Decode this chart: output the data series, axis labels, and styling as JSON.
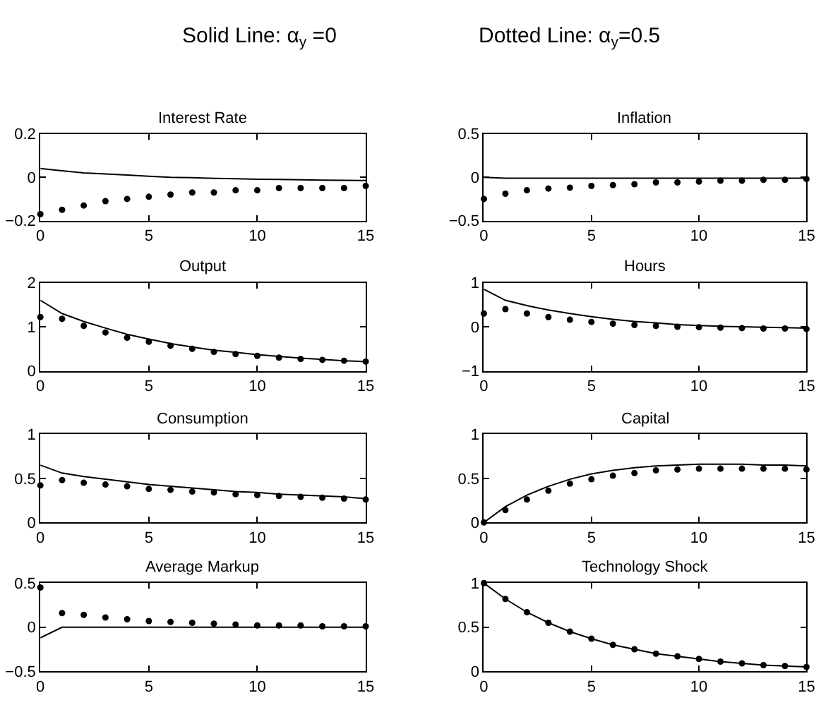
{
  "chart_data": [
    {
      "type": "line",
      "title": "Interest Rate",
      "annotations": [
        "Solid Line: α$_{y}$ =0",
        "Dotted Line: α$_{y}$=0.5"
      ],
      "x": [
        0,
        1,
        2,
        3,
        4,
        5,
        6,
        7,
        8,
        9,
        10,
        11,
        12,
        13,
        14,
        15
      ],
      "xlim": [
        0,
        15
      ],
      "xticks": [
        0,
        5,
        10,
        15
      ],
      "ylim": [
        -0.2,
        0.2
      ],
      "yticks": [
        {
          "value": -0.2,
          "label": "−0.2"
        },
        0,
        0.2
      ],
      "series": [
        {
          "color": "#000000",
          "line_style": "solid",
          "values": [
            0.04,
            0.03,
            0.02,
            0.015,
            0.01,
            0.005,
            0.0,
            -0.002,
            -0.005,
            -0.007,
            -0.009,
            -0.01,
            -0.012,
            -0.013,
            -0.014,
            -0.015
          ]
        },
        {
          "type": "scatter",
          "color": "#000000",
          "marker": "circle",
          "values": [
            -0.17,
            -0.15,
            -0.13,
            -0.11,
            -0.1,
            -0.09,
            -0.08,
            -0.07,
            -0.07,
            -0.06,
            -0.06,
            -0.05,
            -0.05,
            -0.05,
            -0.05,
            -0.04
          ]
        }
      ]
    },
    {
      "type": "line",
      "title": "Inflation",
      "x": [
        0,
        1,
        2,
        3,
        4,
        5,
        6,
        7,
        8,
        9,
        10,
        11,
        12,
        13,
        14,
        15
      ],
      "xlim": [
        0,
        15
      ],
      "xticks": [
        0,
        5,
        10,
        15
      ],
      "ylim": [
        -0.5,
        0.5
      ],
      "yticks": [
        {
          "value": -0.5,
          "label": "−0.5"
        },
        0,
        0.5
      ],
      "series": [
        {
          "color": "#000000",
          "line_style": "solid",
          "values": [
            0.0,
            -0.01,
            -0.01,
            -0.01,
            -0.01,
            -0.01,
            -0.01,
            -0.01,
            -0.01,
            -0.01,
            -0.01,
            -0.01,
            -0.01,
            -0.01,
            -0.01,
            -0.01
          ]
        },
        {
          "type": "scatter",
          "color": "#000000",
          "marker": "circle",
          "values": [
            -0.25,
            -0.19,
            -0.15,
            -0.13,
            -0.12,
            -0.1,
            -0.09,
            -0.08,
            -0.06,
            -0.06,
            -0.05,
            -0.04,
            -0.04,
            -0.03,
            -0.03,
            -0.02
          ]
        }
      ]
    },
    {
      "type": "line",
      "title": "Output",
      "x": [
        0,
        1,
        2,
        3,
        4,
        5,
        6,
        7,
        8,
        9,
        10,
        11,
        12,
        13,
        14,
        15
      ],
      "xlim": [
        0,
        15
      ],
      "xticks": [
        0,
        5,
        10,
        15
      ],
      "ylim": [
        0,
        2
      ],
      "yticks": [
        0,
        1,
        2
      ],
      "series": [
        {
          "color": "#000000",
          "line_style": "solid",
          "values": [
            1.6,
            1.3,
            1.12,
            0.97,
            0.83,
            0.72,
            0.62,
            0.54,
            0.47,
            0.42,
            0.37,
            0.33,
            0.29,
            0.26,
            0.23,
            0.21
          ]
        },
        {
          "type": "scatter",
          "color": "#000000",
          "marker": "circle",
          "values": [
            1.22,
            1.18,
            1.02,
            0.87,
            0.75,
            0.66,
            0.57,
            0.5,
            0.43,
            0.38,
            0.34,
            0.3,
            0.27,
            0.25,
            0.23,
            0.21
          ]
        }
      ]
    },
    {
      "type": "line",
      "title": "Hours",
      "x": [
        0,
        1,
        2,
        3,
        4,
        5,
        6,
        7,
        8,
        9,
        10,
        11,
        12,
        13,
        14,
        15
      ],
      "xlim": [
        0,
        15
      ],
      "xticks": [
        0,
        5,
        10,
        15
      ],
      "ylim": [
        -1,
        1
      ],
      "yticks": [
        {
          "value": -1,
          "label": "−1"
        },
        0,
        1
      ],
      "series": [
        {
          "color": "#000000",
          "line_style": "solid",
          "values": [
            0.85,
            0.6,
            0.48,
            0.38,
            0.3,
            0.23,
            0.17,
            0.12,
            0.09,
            0.05,
            0.03,
            0.01,
            0.0,
            -0.01,
            -0.02,
            -0.03
          ]
        },
        {
          "type": "scatter",
          "color": "#000000",
          "marker": "circle",
          "values": [
            0.3,
            0.4,
            0.3,
            0.22,
            0.16,
            0.11,
            0.07,
            0.04,
            0.02,
            0.0,
            -0.01,
            -0.02,
            -0.03,
            -0.04,
            -0.04,
            -0.05
          ]
        }
      ]
    },
    {
      "type": "line",
      "title": "Consumption",
      "x": [
        0,
        1,
        2,
        3,
        4,
        5,
        6,
        7,
        8,
        9,
        10,
        11,
        12,
        13,
        14,
        15
      ],
      "xlim": [
        0,
        15
      ],
      "xticks": [
        0,
        5,
        10,
        15
      ],
      "ylim": [
        0,
        1
      ],
      "yticks": [
        0,
        0.5,
        1
      ],
      "series": [
        {
          "color": "#000000",
          "line_style": "solid",
          "values": [
            0.65,
            0.56,
            0.52,
            0.49,
            0.46,
            0.43,
            0.41,
            0.39,
            0.37,
            0.35,
            0.34,
            0.32,
            0.31,
            0.3,
            0.29,
            0.27
          ]
        },
        {
          "type": "scatter",
          "color": "#000000",
          "marker": "circle",
          "values": [
            0.42,
            0.48,
            0.45,
            0.43,
            0.41,
            0.38,
            0.37,
            0.35,
            0.34,
            0.32,
            0.31,
            0.3,
            0.29,
            0.28,
            0.27,
            0.26
          ]
        }
      ]
    },
    {
      "type": "line",
      "title": "Capital",
      "x": [
        0,
        1,
        2,
        3,
        4,
        5,
        6,
        7,
        8,
        9,
        10,
        11,
        12,
        13,
        14,
        15
      ],
      "xlim": [
        0,
        15
      ],
      "xticks": [
        0,
        5,
        10,
        15
      ],
      "ylim": [
        0,
        1
      ],
      "yticks": [
        0,
        0.5,
        1
      ],
      "series": [
        {
          "color": "#000000",
          "line_style": "solid",
          "values": [
            0,
            0.18,
            0.31,
            0.41,
            0.49,
            0.55,
            0.59,
            0.62,
            0.64,
            0.65,
            0.66,
            0.66,
            0.66,
            0.65,
            0.65,
            0.64
          ]
        },
        {
          "type": "scatter",
          "color": "#000000",
          "marker": "circle",
          "values": [
            0,
            0.14,
            0.26,
            0.36,
            0.44,
            0.49,
            0.53,
            0.56,
            0.59,
            0.6,
            0.61,
            0.61,
            0.61,
            0.61,
            0.61,
            0.6
          ]
        }
      ]
    },
    {
      "type": "line",
      "title": "Average Markup",
      "x": [
        0,
        1,
        2,
        3,
        4,
        5,
        6,
        7,
        8,
        9,
        10,
        11,
        12,
        13,
        14,
        15
      ],
      "xlim": [
        0,
        15
      ],
      "xticks": [
        0,
        5,
        10,
        15
      ],
      "ylim": [
        -0.5,
        0.5
      ],
      "yticks": [
        {
          "value": -0.5,
          "label": "−0.5"
        },
        0,
        0.5
      ],
      "series": [
        {
          "color": "#000000",
          "line_style": "solid",
          "values": [
            -0.12,
            0,
            0,
            0,
            0,
            0,
            0,
            0,
            0,
            0,
            0,
            0,
            0,
            0,
            0,
            0
          ]
        },
        {
          "type": "scatter",
          "color": "#000000",
          "marker": "circle",
          "values": [
            0.45,
            0.16,
            0.14,
            0.11,
            0.09,
            0.07,
            0.06,
            0.05,
            0.04,
            0.03,
            0.02,
            0.02,
            0.02,
            0.01,
            0.01,
            0.01
          ]
        }
      ]
    },
    {
      "type": "line",
      "title": "Technology Shock",
      "x": [
        0,
        1,
        2,
        3,
        4,
        5,
        6,
        7,
        8,
        9,
        10,
        11,
        12,
        13,
        14,
        15
      ],
      "xlim": [
        0,
        15
      ],
      "xticks": [
        0,
        5,
        10,
        15
      ],
      "ylim": [
        0,
        1
      ],
      "yticks": [
        0,
        0.5,
        1
      ],
      "series": [
        {
          "color": "#000000",
          "line_style": "solid",
          "values": [
            1,
            0.82,
            0.67,
            0.55,
            0.45,
            0.37,
            0.3,
            0.25,
            0.2,
            0.17,
            0.14,
            0.11,
            0.09,
            0.07,
            0.06,
            0.05
          ]
        },
        {
          "type": "scatter",
          "color": "#000000",
          "marker": "circle",
          "values": [
            1,
            0.82,
            0.67,
            0.55,
            0.45,
            0.37,
            0.3,
            0.25,
            0.2,
            0.17,
            0.14,
            0.11,
            0.09,
            0.07,
            0.06,
            0.05
          ]
        }
      ]
    }
  ]
}
